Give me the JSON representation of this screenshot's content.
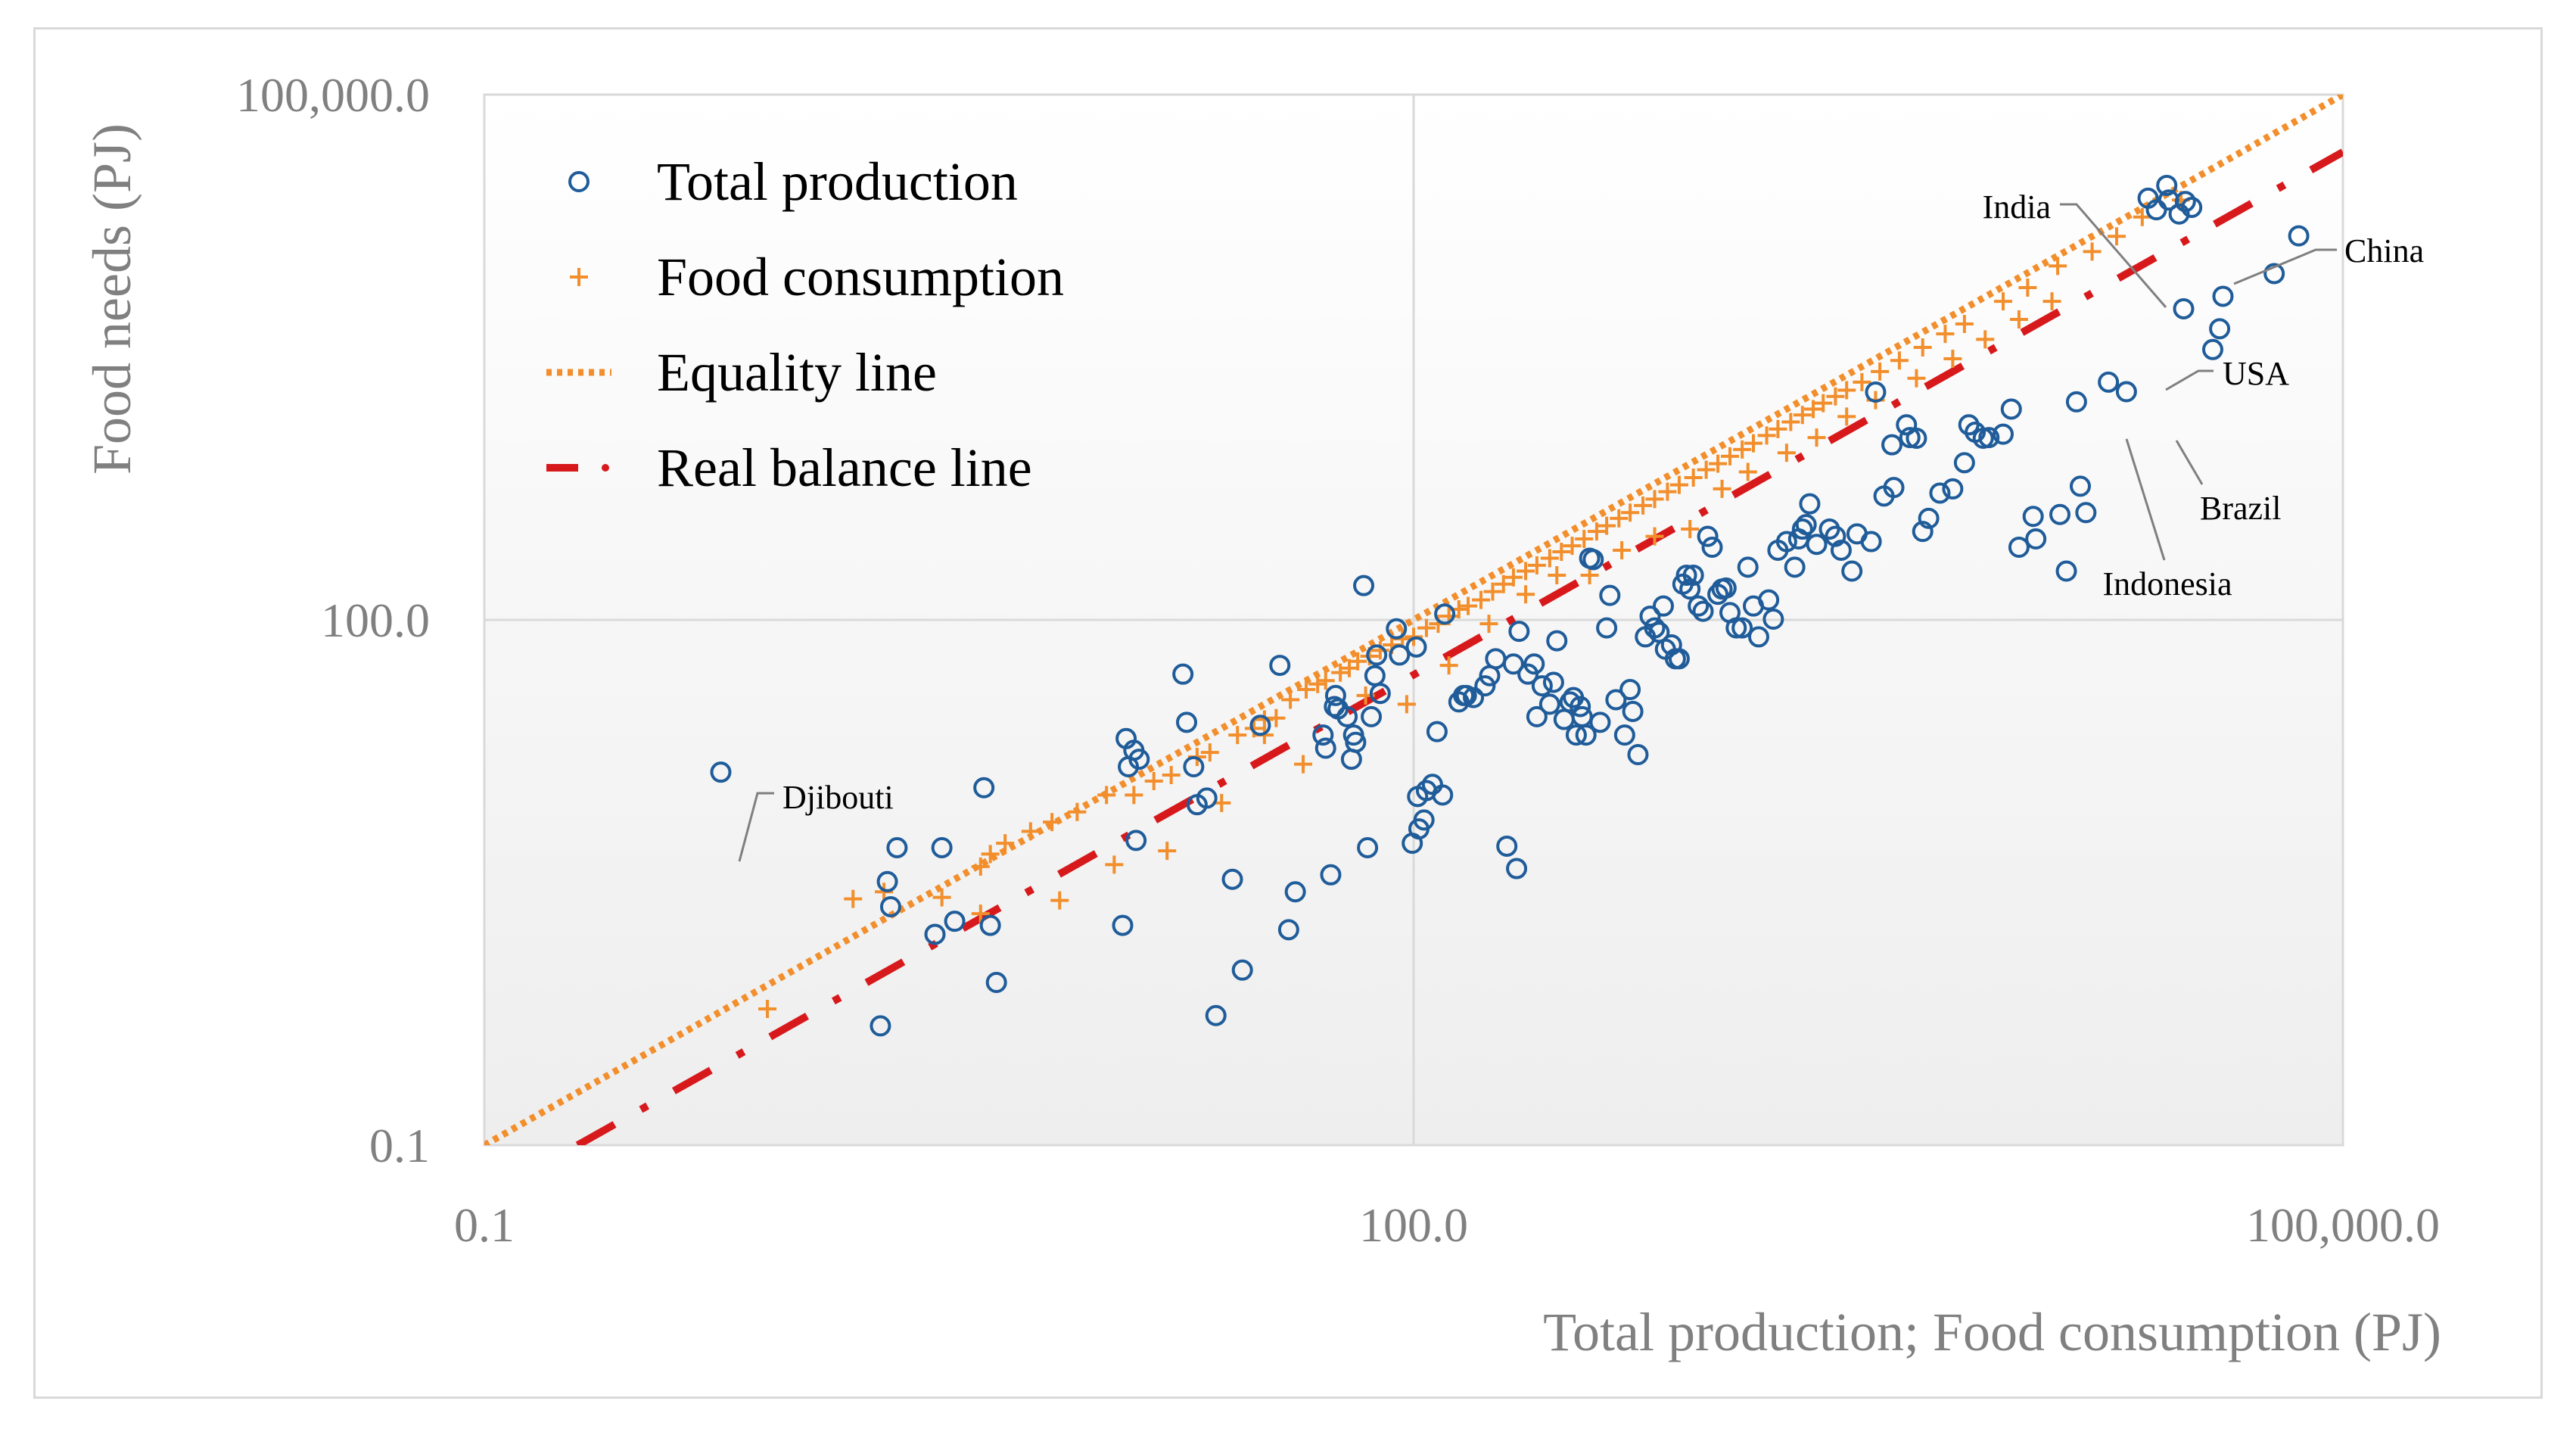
{
  "chart_data": {
    "type": "scatter",
    "xlabel": "Total production; Food consumption (PJ)",
    "ylabel": "Food needs  (PJ)",
    "xscale": "log",
    "yscale": "log",
    "xlim": [
      0.1,
      100000
    ],
    "ylim": [
      0.1,
      100000
    ],
    "x_ticks": [
      0.1,
      100.0,
      100000.0
    ],
    "x_tick_labels": [
      "0.1",
      "100.0",
      "100,000.0"
    ],
    "y_ticks": [
      0.1,
      100.0,
      100000.0
    ],
    "y_tick_labels": [
      "0.1",
      "100.0",
      "100,000.0"
    ],
    "grid": true,
    "legend_position": "top-left",
    "colors": {
      "production": "#1f5c99",
      "consumption": "#f28e2b",
      "equality": "#f28e2b",
      "balance": "#d7191c",
      "grid": "#d9d9d9",
      "axis_text": "#808080"
    },
    "series": [
      {
        "name": "Total production",
        "marker": "circle",
        "points": [
          [
            0.58,
            13.5
          ],
          [
            1.9,
            0.48
          ],
          [
            2.0,
            3.2
          ],
          [
            2.05,
            2.3
          ],
          [
            2.15,
            5.0
          ],
          [
            2.85,
            1.6
          ],
          [
            3.0,
            5.0
          ],
          [
            3.3,
            1.9
          ],
          [
            4.1,
            11.0
          ],
          [
            4.3,
            1.8
          ],
          [
            4.5,
            0.85
          ],
          [
            11.5,
            1.8
          ],
          [
            11.8,
            21
          ],
          [
            12.0,
            14.5
          ],
          [
            12.7,
            5.5
          ],
          [
            12.5,
            18
          ],
          [
            13.0,
            16
          ],
          [
            18.0,
            49
          ],
          [
            18.5,
            26
          ],
          [
            19.5,
            14.5
          ],
          [
            20.0,
            8.8
          ],
          [
            21.5,
            9.6
          ],
          [
            23.0,
            0.55
          ],
          [
            26.0,
            3.3
          ],
          [
            28.0,
            1.0
          ],
          [
            32.0,
            25
          ],
          [
            37.0,
            55
          ],
          [
            39.5,
            1.7
          ],
          [
            41.5,
            2.8
          ],
          [
            51.0,
            22
          ],
          [
            52.0,
            18.5
          ],
          [
            54.0,
            3.5
          ],
          [
            56.0,
            37
          ],
          [
            55.5,
            32
          ],
          [
            57.0,
            31
          ],
          [
            61.0,
            28
          ],
          [
            63.0,
            16
          ],
          [
            64.0,
            22
          ],
          [
            65.0,
            20
          ],
          [
            69.0,
            157
          ],
          [
            71.0,
            5.0
          ],
          [
            73.0,
            28
          ],
          [
            75.0,
            48
          ],
          [
            76.0,
            63
          ],
          [
            78.0,
            38
          ],
          [
            88.0,
            89
          ],
          [
            90.0,
            63
          ],
          [
            99.0,
            5.3
          ],
          [
            102.0,
            70
          ],
          [
            103.0,
            9.8
          ],
          [
            104.0,
            6.4
          ],
          [
            108.0,
            7.2
          ],
          [
            110.0,
            10.6
          ],
          [
            115.0,
            11.5
          ],
          [
            119.0,
            23
          ],
          [
            124.0,
            10.0
          ],
          [
            126.0,
            108
          ],
          [
            140.0,
            34
          ],
          [
            145.0,
            37
          ],
          [
            148.0,
            37
          ],
          [
            156.0,
            36
          ],
          [
            170.0,
            42
          ],
          [
            176.0,
            48
          ],
          [
            184.0,
            60
          ],
          [
            200.0,
            5.1
          ],
          [
            210.0,
            56
          ],
          [
            215.0,
            3.8
          ],
          [
            219.0,
            86
          ],
          [
            234.0,
            49
          ],
          [
            245.0,
            56
          ],
          [
            250.0,
            28
          ],
          [
            260.0,
            42
          ],
          [
            275.0,
            33
          ],
          [
            283.0,
            44
          ],
          [
            290.0,
            76
          ],
          [
            306.0,
            27
          ],
          [
            320.0,
            34
          ],
          [
            328.0,
            36
          ],
          [
            335.0,
            22
          ],
          [
            345.0,
            32
          ],
          [
            350.0,
            28
          ],
          [
            360.0,
            22
          ],
          [
            370.0,
            225
          ],
          [
            380.0,
            221
          ],
          [
            400.0,
            26
          ],
          [
            420.0,
            90
          ],
          [
            430.0,
            138
          ],
          [
            450.0,
            35
          ],
          [
            480.0,
            22
          ],
          [
            500.0,
            40
          ],
          [
            510.0,
            30
          ],
          [
            530.0,
            17
          ],
          [
            560.0,
            80
          ],
          [
            580.0,
            105
          ],
          [
            600.0,
            90
          ],
          [
            620.0,
            85
          ],
          [
            640.0,
            120
          ],
          [
            650.0,
            68
          ],
          [
            680.0,
            72
          ],
          [
            700.0,
            60
          ],
          [
            720.0,
            60
          ],
          [
            740.0,
            160
          ],
          [
            760.0,
            180
          ],
          [
            780.0,
            150
          ],
          [
            800.0,
            180
          ],
          [
            830.0,
            120
          ],
          [
            860.0,
            112
          ],
          [
            890.0,
            300
          ],
          [
            920.0,
            260
          ],
          [
            960.0,
            140
          ],
          [
            990.0,
            150
          ],
          [
            1020.0,
            152
          ],
          [
            1050.0,
            110
          ],
          [
            1100.0,
            90
          ],
          [
            1150.0,
            90
          ],
          [
            1200.0,
            200
          ],
          [
            1250.0,
            120
          ],
          [
            1300.0,
            80
          ],
          [
            1400.0,
            130
          ],
          [
            1450.0,
            101
          ],
          [
            1500.0,
            250
          ],
          [
            1600.0,
            280
          ],
          [
            1700.0,
            200
          ],
          [
            1750.0,
            290
          ],
          [
            1800.0,
            330
          ],
          [
            1850.0,
            350
          ],
          [
            1900.0,
            460
          ],
          [
            2000.0,
            270
          ],
          [
            2200.0,
            330
          ],
          [
            2300.0,
            300
          ],
          [
            2400.0,
            250
          ],
          [
            2600.0,
            190
          ],
          [
            2700.0,
            310
          ],
          [
            3000.0,
            280
          ],
          [
            3100.0,
            2000
          ],
          [
            3300.0,
            510
          ],
          [
            3500.0,
            1000
          ],
          [
            3550.0,
            570
          ],
          [
            3900.0,
            1300
          ],
          [
            4000.0,
            1100
          ],
          [
            4200.0,
            1090
          ],
          [
            4400.0,
            320
          ],
          [
            4600.0,
            380
          ],
          [
            5000.0,
            530
          ],
          [
            5500.0,
            560
          ],
          [
            6000.0,
            790
          ],
          [
            6200.0,
            1300
          ],
          [
            6500.0,
            1180
          ],
          [
            6900.0,
            1090
          ],
          [
            7200.0,
            1100
          ],
          [
            8000.0,
            1150
          ],
          [
            8500.0,
            1600
          ],
          [
            9000.0,
            260
          ],
          [
            10000.0,
            390
          ],
          [
            10200.0,
            290
          ],
          [
            12200.0,
            400
          ],
          [
            12800.0,
            190
          ],
          [
            13800.0,
            1760
          ],
          [
            14200.0,
            580
          ],
          [
            14800.0,
            410
          ],
          [
            17500.0,
            2280
          ],
          [
            20000.0,
            2010
          ],
          [
            23500.0,
            25600
          ],
          [
            27000.0,
            30300
          ],
          [
            29600.0,
            20800
          ],
          [
            30600.0,
            5980
          ],
          [
            32500.0,
            22700
          ],
          [
            31000.0,
            24500
          ],
          [
            27400.0,
            25000
          ],
          [
            25000.0,
            22000
          ],
          [
            60000.0,
            9500
          ],
          [
            40000.0,
            4600
          ],
          [
            38000.0,
            3500
          ],
          [
            72000.0,
            15600
          ],
          [
            41000.0,
            7050
          ]
        ]
      },
      {
        "name": "Food consumption",
        "marker": "plus",
        "points": [
          [
            0.82,
            0.6
          ],
          [
            1.55,
            2.55
          ],
          [
            1.95,
            2.8
          ],
          [
            3.0,
            2.6
          ],
          [
            4.0,
            3.9
          ],
          [
            4.3,
            4.6
          ],
          [
            4.8,
            5.3
          ],
          [
            5.8,
            6.2
          ],
          [
            6.8,
            7.0
          ],
          [
            8.2,
            8.0
          ],
          [
            10.2,
            10.0
          ],
          [
            12.5,
            10.0
          ],
          [
            14.5,
            12.0
          ],
          [
            16.5,
            13.0
          ],
          [
            20.0,
            16.5
          ],
          [
            22.0,
            17.5
          ],
          [
            27.0,
            22.0
          ],
          [
            30.5,
            24.0
          ],
          [
            33.0,
            27.0
          ],
          [
            36.0,
            27.5
          ],
          [
            40.0,
            35.0
          ],
          [
            45.0,
            40.0
          ],
          [
            49.0,
            43.0
          ],
          [
            52.0,
            45.0
          ],
          [
            58.0,
            50.0
          ],
          [
            62.0,
            53.0
          ],
          [
            66.0,
            58.0
          ],
          [
            72.0,
            62.0
          ],
          [
            78.0,
            67.0
          ],
          [
            85.0,
            72.0
          ],
          [
            92.0,
            78.0
          ],
          [
            100.0,
            80.0
          ],
          [
            110.0,
            90.0
          ],
          [
            120.0,
            95.0
          ],
          [
            130.0,
            105.0
          ],
          [
            140.0,
            115.0
          ],
          [
            150.0,
            120.0
          ],
          [
            165.0,
            130.0
          ],
          [
            180.0,
            145.0
          ],
          [
            195.0,
            160.0
          ],
          [
            210.0,
            175.0
          ],
          [
            230.0,
            190.0
          ],
          [
            250.0,
            205.0
          ],
          [
            275.0,
            225.0
          ],
          [
            300.0,
            245.0
          ],
          [
            325.0,
            265.0
          ],
          [
            355.0,
            290.0
          ],
          [
            390.0,
            320.0
          ],
          [
            420.0,
            345.0
          ],
          [
            460.0,
            380.0
          ],
          [
            500.0,
            410.0
          ],
          [
            550.0,
            450.0
          ],
          [
            600.0,
            490.0
          ],
          [
            660.0,
            540.0
          ],
          [
            720.0,
            590.0
          ],
          [
            800.0,
            650.0
          ],
          [
            880.0,
            720.0
          ],
          [
            960.0,
            780.0
          ],
          [
            1050.0,
            860.0
          ],
          [
            1150.0,
            940.0
          ],
          [
            1250.0,
            1020.0
          ],
          [
            1380.0,
            1130.0
          ],
          [
            1500.0,
            1230.0
          ],
          [
            1650.0,
            1350.0
          ],
          [
            1800.0,
            1480.0
          ],
          [
            1950.0,
            1600.0
          ],
          [
            2100.0,
            1730.0
          ],
          [
            2300.0,
            1890.0
          ],
          [
            2500.0,
            2050.0
          ],
          [
            2800.0,
            2280.0
          ],
          [
            3200.0,
            2620.0
          ],
          [
            3700.0,
            3030.0
          ],
          [
            4400.0,
            3600.0
          ],
          [
            5200.0,
            4300.0
          ],
          [
            6000.0,
            4900.0
          ],
          [
            8000.0,
            6600.0
          ],
          [
            9600.0,
            7900.0
          ],
          [
            12000.0,
            10500.0
          ],
          [
            15500.0,
            12700.0
          ],
          [
            18600.0,
            15500.0
          ],
          [
            22500.0,
            20000.0
          ],
          [
            30000.0,
            25000.0
          ],
          [
            4.0,
            2.1
          ],
          [
            7.2,
            2.5
          ],
          [
            10.8,
            4.0
          ],
          [
            16.0,
            4.8
          ],
          [
            24.0,
            9.0
          ],
          [
            33.0,
            22.0
          ],
          [
            44.0,
            15.0
          ],
          [
            70.0,
            37.0
          ],
          [
            95.0,
            33.0
          ],
          [
            130.0,
            55.0
          ],
          [
            175.0,
            95.0
          ],
          [
            230.0,
            140.0
          ],
          [
            290.0,
            180.0
          ],
          [
            370.0,
            180.0
          ],
          [
            470.0,
            250.0
          ],
          [
            600.0,
            300.0
          ],
          [
            780.0,
            330.0
          ],
          [
            990.0,
            560.0
          ],
          [
            1200.0,
            700.0
          ],
          [
            1600.0,
            900.0
          ],
          [
            2000.0,
            1100.0
          ],
          [
            2500.0,
            1450.0
          ],
          [
            3100.0,
            1800.0
          ],
          [
            4200.0,
            2400.0
          ],
          [
            5500.0,
            3100.0
          ],
          [
            7000.0,
            4000.0
          ],
          [
            9000.0,
            5200.0
          ],
          [
            11500.0,
            6600.0
          ]
        ]
      },
      {
        "name": "Equality line",
        "style": "dotted",
        "points": [
          [
            0.1,
            0.1
          ],
          [
            100000,
            100000
          ]
        ]
      },
      {
        "name": "Real balance line",
        "style": "dash-dot",
        "points": [
          [
            0.2,
            0.1
          ],
          [
            100000,
            47000
          ]
        ]
      }
    ],
    "annotations": [
      {
        "text": "Djibouti",
        "x": 0.58,
        "y": 13.5
      },
      {
        "text": "India",
        "x": 27000,
        "y": 20800
      },
      {
        "text": "China",
        "x": 60000,
        "y": 9500
      },
      {
        "text": "USA",
        "x": 41000,
        "y": 7050
      },
      {
        "text": "Brazil",
        "x": 40000,
        "y": 4600
      },
      {
        "text": "Indonesia",
        "x": 38000,
        "y": 3500
      }
    ]
  }
}
